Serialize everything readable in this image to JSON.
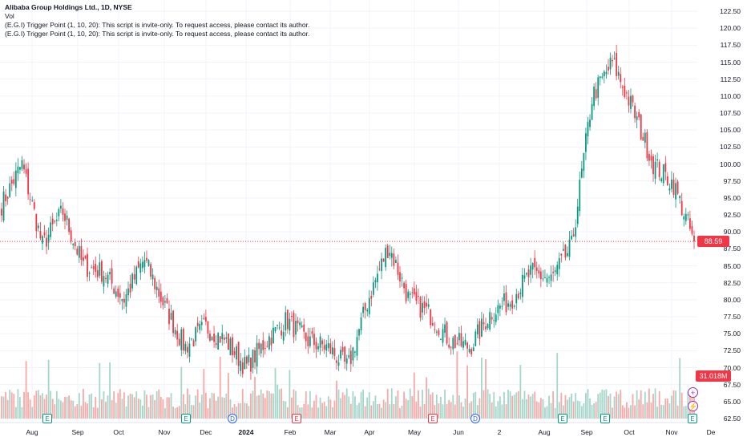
{
  "legend": {
    "title": "Alibaba Group Holdings Ltd., 1D, NYSE",
    "vol": "Vol",
    "indicator_1": "(E.G.I) Trigger Point  (1, 10, 20): This script is invite-only. To request access, please contact its author.",
    "indicator_2": "(E.G.I) Trigger Point  (1, 10, 20): This script is invite-only. To request access, please contact its author."
  },
  "price_axis": [
    "122.50",
    "120.00",
    "117.50",
    "115.00",
    "112.50",
    "110.00",
    "107.50",
    "105.00",
    "102.50",
    "100.00",
    "97.50",
    "95.00",
    "92.50",
    "90.00",
    "87.50",
    "85.00",
    "82.50",
    "80.00",
    "77.50",
    "75.00",
    "72.50",
    "70.00",
    "67.50",
    "65.00",
    "62.50"
  ],
  "current_price": "88.59",
  "current_volume": "31.018M",
  "time_axis": [
    {
      "label": "Aug",
      "bold": false
    },
    {
      "label": "Sep",
      "bold": false
    },
    {
      "label": "Oct",
      "bold": false
    },
    {
      "label": "Nov",
      "bold": false
    },
    {
      "label": "Dec",
      "bold": false
    },
    {
      "label": "2024",
      "bold": true
    },
    {
      "label": "Feb",
      "bold": false
    },
    {
      "label": "Mar",
      "bold": false
    },
    {
      "label": "Apr",
      "bold": false
    },
    {
      "label": "May",
      "bold": false
    },
    {
      "label": "Jun",
      "bold": false
    },
    {
      "label": "2",
      "bold": false
    },
    {
      "label": "Aug",
      "bold": false
    },
    {
      "label": "Sep",
      "bold": false
    },
    {
      "label": "Oct",
      "bold": false
    },
    {
      "label": "Nov",
      "bold": false
    },
    {
      "label": "De",
      "bold": false
    }
  ],
  "events": [
    {
      "type": "E",
      "x_date": "Aug"
    },
    {
      "type": "E",
      "x_date": "Nov"
    },
    {
      "type": "D",
      "x_date": "Dec"
    },
    {
      "type": "E",
      "x_date": "Feb"
    },
    {
      "type": "E",
      "x_date": "May"
    },
    {
      "type": "D",
      "x_date": "Jun"
    },
    {
      "type": "E",
      "x_date": "Aug"
    },
    {
      "type": "E",
      "x_date": "Sep"
    },
    {
      "type": "E",
      "x_date": "Nov"
    }
  ],
  "colors": {
    "up": "#089981",
    "down": "#f23645",
    "up_vol": "#a5d6c9",
    "down_vol": "#f7a9a7",
    "grid": "#f0f3fa"
  },
  "chart_data": {
    "type": "candlestick",
    "ylim": [
      62.5,
      122.5
    ],
    "close_anchors": [
      {
        "month": "Jul 2023",
        "close": 94
      },
      {
        "month": "Aug 2023 early",
        "close": 100
      },
      {
        "month": "Aug 2023",
        "close": 88
      },
      {
        "month": "Sep 2023",
        "close": 93
      },
      {
        "month": "Sep 2023 late",
        "close": 85
      },
      {
        "month": "Oct 2023",
        "close": 84
      },
      {
        "month": "Oct 2023 late",
        "close": 80
      },
      {
        "month": "Nov 2023",
        "close": 86
      },
      {
        "month": "Nov 2023 mid",
        "close": 79
      },
      {
        "month": "Dec 2023",
        "close": 73
      },
      {
        "month": "Dec 2023 late",
        "close": 76
      },
      {
        "month": "Jan 2024",
        "close": 74
      },
      {
        "month": "Jan 2024 late",
        "close": 70
      },
      {
        "month": "Feb 2024",
        "close": 74
      },
      {
        "month": "Feb 2024 late",
        "close": 77
      },
      {
        "month": "Mar 2024",
        "close": 74
      },
      {
        "month": "Apr 2024",
        "close": 73
      },
      {
        "month": "Apr 2024 late",
        "close": 70
      },
      {
        "month": "May 2024",
        "close": 80
      },
      {
        "month": "May 2024 mid",
        "close": 88
      },
      {
        "month": "May 2024 late",
        "close": 80
      },
      {
        "month": "Jun 2024",
        "close": 78
      },
      {
        "month": "Jun 2024 late",
        "close": 74
      },
      {
        "month": "Jul 2024",
        "close": 73
      },
      {
        "month": "Jul 2024 late",
        "close": 78
      },
      {
        "month": "Aug 2024",
        "close": 80
      },
      {
        "month": "Aug 2024 late",
        "close": 84
      },
      {
        "month": "Sep 2024",
        "close": 83
      },
      {
        "month": "Sep 2024 mid",
        "close": 88
      },
      {
        "month": "Sep 2024 late",
        "close": 110
      },
      {
        "month": "Oct 2024",
        "close": 115
      },
      {
        "month": "Oct 2024 mid",
        "close": 108
      },
      {
        "month": "Oct 2024 late",
        "close": 100
      },
      {
        "month": "Nov 2024",
        "close": 97
      },
      {
        "month": "Nov 2024 mid",
        "close": 88.59
      }
    ]
  }
}
